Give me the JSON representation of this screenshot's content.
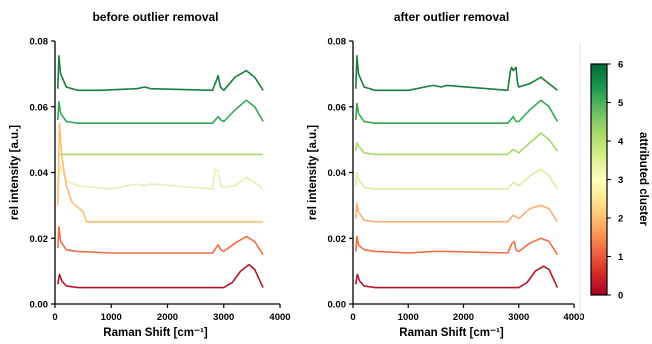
{
  "colorbar": {
    "label": "attributed cluster",
    "ticks": [
      "0",
      "1",
      "2",
      "3",
      "4",
      "5",
      "6"
    ],
    "range": [
      0,
      6
    ],
    "colors": [
      "#a50026",
      "#d73027",
      "#f46d43",
      "#fdae61",
      "#fee08b",
      "#ffffbf",
      "#d9ef8b",
      "#a6d96a",
      "#66bd63",
      "#1a9850",
      "#006837"
    ]
  },
  "chart_data": [
    {
      "type": "line",
      "title": "before outlier removal",
      "xlabel": "Raman Shift [cm⁻¹]",
      "ylabel": "rel intensity [a.u.]",
      "xlim": [
        0,
        4000
      ],
      "ylim": [
        0,
        0.08
      ],
      "xticks": [
        "0",
        "1000",
        "2000",
        "3000",
        "4000"
      ],
      "yticks": [
        "0.00",
        "0.02",
        "0.04",
        "0.06",
        "0.08"
      ],
      "grid": false,
      "series": [
        {
          "cluster": 6,
          "color": "#1a7f3c",
          "x": [
            50,
            70,
            100,
            200,
            400,
            800,
            1450,
            1600,
            1700,
            2800,
            2870,
            2900,
            2940,
            3000,
            3200,
            3400,
            3550,
            3700
          ],
          "y": [
            0.0655,
            0.0755,
            0.07,
            0.066,
            0.065,
            0.065,
            0.0655,
            0.066,
            0.0655,
            0.065,
            0.068,
            0.0695,
            0.066,
            0.065,
            0.069,
            0.071,
            0.069,
            0.065
          ]
        },
        {
          "cluster": 5,
          "color": "#34a853",
          "x": [
            50,
            70,
            100,
            200,
            400,
            1000,
            2800,
            2900,
            2950,
            3000,
            3200,
            3400,
            3550,
            3700
          ],
          "y": [
            0.056,
            0.0615,
            0.058,
            0.0555,
            0.055,
            0.055,
            0.055,
            0.057,
            0.056,
            0.0555,
            0.059,
            0.062,
            0.06,
            0.0555
          ]
        },
        {
          "cluster": 4,
          "color": "#a6d96a",
          "x": [
            50,
            1000,
            2000,
            3000,
            3700
          ],
          "y": [
            0.0455,
            0.0455,
            0.0455,
            0.0455,
            0.0455
          ]
        },
        {
          "cluster": 3,
          "color": "#ecedb0",
          "x": [
            50,
            100,
            200,
            400,
            1000,
            1450,
            1600,
            1700,
            2800,
            2850,
            2900,
            2950,
            3000,
            3200,
            3400,
            3550,
            3700
          ],
          "y": [
            0.036,
            0.042,
            0.0375,
            0.036,
            0.035,
            0.0365,
            0.036,
            0.0365,
            0.035,
            0.041,
            0.0405,
            0.036,
            0.0355,
            0.036,
            0.0385,
            0.037,
            0.035
          ]
        },
        {
          "cluster": 2,
          "color": "#f9c16e",
          "x": [
            50,
            80,
            120,
            200,
            300,
            500,
            560,
            600,
            1000,
            2000,
            3000,
            3700
          ],
          "y": [
            0.03,
            0.055,
            0.045,
            0.036,
            0.031,
            0.028,
            0.025,
            0.025,
            0.025,
            0.025,
            0.025,
            0.025
          ]
        },
        {
          "cluster": 1,
          "color": "#f46d43",
          "x": [
            50,
            70,
            100,
            200,
            400,
            1000,
            2800,
            2900,
            2950,
            3000,
            3200,
            3400,
            3550,
            3700
          ],
          "y": [
            0.017,
            0.0235,
            0.019,
            0.0165,
            0.016,
            0.0155,
            0.0155,
            0.018,
            0.0165,
            0.016,
            0.0185,
            0.0205,
            0.019,
            0.015
          ]
        },
        {
          "cluster": 0,
          "color": "#b2182b",
          "x": [
            50,
            80,
            120,
            200,
            400,
            1000,
            2000,
            3000,
            3150,
            3300,
            3450,
            3550,
            3700
          ],
          "y": [
            0.006,
            0.009,
            0.007,
            0.0055,
            0.005,
            0.005,
            0.005,
            0.005,
            0.0065,
            0.01,
            0.012,
            0.0105,
            0.005
          ]
        }
      ]
    },
    {
      "type": "line",
      "title": "after outlier removal",
      "xlabel": "Raman Shift [cm⁻¹]",
      "ylabel": "rel intensity [a.u.]",
      "xlim": [
        0,
        4000
      ],
      "ylim": [
        0,
        0.08
      ],
      "xticks": [
        "0",
        "1000",
        "2000",
        "3000",
        "4000"
      ],
      "yticks": [
        "0.00",
        "0.02",
        "0.04",
        "0.06",
        "0.08"
      ],
      "grid": false,
      "series": [
        {
          "cluster": 6,
          "color": "#1a7f3c",
          "x": [
            50,
            70,
            100,
            200,
            400,
            1000,
            1450,
            1600,
            1700,
            2800,
            2850,
            2870,
            2900,
            2950,
            2980,
            3000,
            3200,
            3400,
            3550,
            3700
          ],
          "y": [
            0.0655,
            0.0755,
            0.07,
            0.066,
            0.065,
            0.065,
            0.0665,
            0.066,
            0.0665,
            0.065,
            0.071,
            0.072,
            0.071,
            0.072,
            0.067,
            0.066,
            0.067,
            0.069,
            0.067,
            0.065
          ]
        },
        {
          "cluster": 5,
          "color": "#34a853",
          "x": [
            50,
            70,
            100,
            200,
            400,
            1000,
            2800,
            2900,
            2950,
            3000,
            3200,
            3400,
            3550,
            3700
          ],
          "y": [
            0.056,
            0.061,
            0.058,
            0.0555,
            0.055,
            0.055,
            0.055,
            0.057,
            0.0555,
            0.0555,
            0.059,
            0.062,
            0.06,
            0.0555
          ]
        },
        {
          "cluster": 4,
          "color": "#a6d96a",
          "x": [
            50,
            70,
            100,
            200,
            400,
            1000,
            2800,
            2900,
            3000,
            3200,
            3400,
            3550,
            3700
          ],
          "y": [
            0.0465,
            0.049,
            0.048,
            0.046,
            0.0455,
            0.0455,
            0.0455,
            0.047,
            0.046,
            0.049,
            0.052,
            0.05,
            0.0465
          ]
        },
        {
          "cluster": 3,
          "color": "#e6e89a",
          "x": [
            50,
            70,
            100,
            200,
            400,
            1000,
            2800,
            2900,
            3000,
            3200,
            3400,
            3550,
            3700
          ],
          "y": [
            0.036,
            0.04,
            0.038,
            0.0355,
            0.035,
            0.035,
            0.035,
            0.037,
            0.036,
            0.039,
            0.041,
            0.039,
            0.035
          ]
        },
        {
          "cluster": 2,
          "color": "#fbb072",
          "x": [
            50,
            70,
            100,
            200,
            400,
            1000,
            2800,
            2900,
            3000,
            3200,
            3400,
            3550,
            3700
          ],
          "y": [
            0.026,
            0.0305,
            0.028,
            0.0255,
            0.025,
            0.025,
            0.025,
            0.027,
            0.026,
            0.029,
            0.03,
            0.029,
            0.025
          ]
        },
        {
          "cluster": 1,
          "color": "#f46d43",
          "x": [
            50,
            70,
            100,
            200,
            400,
            1000,
            1450,
            1700,
            2800,
            2880,
            2920,
            2950,
            3000,
            3200,
            3400,
            3550,
            3700
          ],
          "y": [
            0.016,
            0.0205,
            0.018,
            0.0165,
            0.016,
            0.0155,
            0.016,
            0.016,
            0.0155,
            0.0185,
            0.019,
            0.0165,
            0.016,
            0.0185,
            0.02,
            0.019,
            0.015
          ]
        },
        {
          "cluster": 0,
          "color": "#b2182b",
          "x": [
            50,
            80,
            120,
            200,
            400,
            1000,
            2000,
            3000,
            3150,
            3300,
            3450,
            3550,
            3700
          ],
          "y": [
            0.006,
            0.009,
            0.007,
            0.0055,
            0.005,
            0.005,
            0.005,
            0.005,
            0.0065,
            0.01,
            0.0115,
            0.0105,
            0.005
          ]
        }
      ]
    }
  ]
}
